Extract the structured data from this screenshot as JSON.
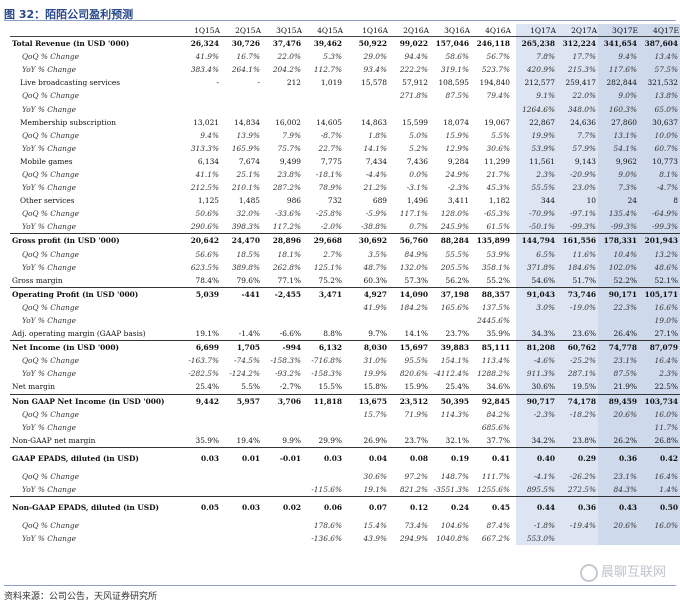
{
  "title": "图 32：陌陌公司盈利预测",
  "source": "资料来源：公司公告，天风证券研究所",
  "watermark": "晨聊互联网",
  "colors": {
    "shade": "#dde5f2",
    "shade_estimate": "#cfd9ec",
    "title": "#2b4a8a"
  },
  "columns": [
    "",
    "1Q15A",
    "2Q15A",
    "3Q15A",
    "4Q15A",
    "1Q16A",
    "2Q16A",
    "3Q16A",
    "4Q16A",
    "1Q17A",
    "2Q17A",
    "3Q17E",
    "4Q17E"
  ],
  "rows": [
    {
      "label": "Total Revenue (in USD '000)",
      "type": "main",
      "v": [
        "26,324",
        "30,726",
        "37,476",
        "39,462",
        "50,922",
        "99,022",
        "157,046",
        "246,118",
        "265,238",
        "312,224",
        "341,654",
        "387,604"
      ]
    },
    {
      "label": "QoQ % Change",
      "type": "sub",
      "v": [
        "41.9%",
        "16.7%",
        "22.0%",
        "5.3%",
        "29.0%",
        "94.4%",
        "58.6%",
        "56.7%",
        "7.8%",
        "17.7%",
        "9.4%",
        "13.4%"
      ]
    },
    {
      "label": "YoY % Change",
      "type": "sub",
      "v": [
        "383.4%",
        "264.1%",
        "204.2%",
        "112.7%",
        "93.4%",
        "222.2%",
        "319.1%",
        "523.7%",
        "420.9%",
        "215.3%",
        "117.6%",
        "57.5%"
      ]
    },
    {
      "label": "Live broadcasting services",
      "type": "sec",
      "v": [
        "-",
        "-",
        "212",
        "1,019",
        "15,578",
        "57,912",
        "108,595",
        "194,840",
        "212,577",
        "259,417",
        "282,844",
        "321,532"
      ]
    },
    {
      "label": "QoQ % Change",
      "type": "sub",
      "v": [
        "",
        "",
        "",
        "",
        "",
        "271.8%",
        "87.5%",
        "79.4%",
        "9.1%",
        "22.0%",
        "9.0%",
        "13.8%"
      ]
    },
    {
      "label": "YoY % Change",
      "type": "sub",
      "v": [
        "",
        "",
        "",
        "",
        "",
        "",
        "",
        "",
        "1264.6%",
        "348.0%",
        "160.3%",
        "65.0%"
      ]
    },
    {
      "label": "Membership subscription",
      "type": "sec",
      "v": [
        "13,021",
        "14,834",
        "16,002",
        "14,605",
        "14,863",
        "15,599",
        "18,074",
        "19,067",
        "22,867",
        "24,636",
        "27,860",
        "30,637"
      ]
    },
    {
      "label": "QoQ % Change",
      "type": "sub",
      "v": [
        "9.4%",
        "13.9%",
        "7.9%",
        "-8.7%",
        "1.8%",
        "5.0%",
        "15.9%",
        "5.5%",
        "19.9%",
        "7.7%",
        "13.1%",
        "10.0%"
      ]
    },
    {
      "label": "YoY % Change",
      "type": "sub",
      "v": [
        "313.3%",
        "165.9%",
        "75.7%",
        "22.7%",
        "14.1%",
        "5.2%",
        "12.9%",
        "30.6%",
        "53.9%",
        "57.9%",
        "54.1%",
        "60.7%"
      ]
    },
    {
      "label": "Mobile games",
      "type": "sec",
      "v": [
        "6,134",
        "7,674",
        "9,499",
        "7,775",
        "7,434",
        "7,436",
        "9,284",
        "11,299",
        "11,561",
        "9,143",
        "9,962",
        "10,773"
      ]
    },
    {
      "label": "QoQ % Change",
      "type": "sub",
      "v": [
        "41.1%",
        "25.1%",
        "23.8%",
        "-18.1%",
        "-4.4%",
        "0.0%",
        "24.9%",
        "21.7%",
        "2.3%",
        "-20.9%",
        "9.0%",
        "8.1%"
      ]
    },
    {
      "label": "YoY % Change",
      "type": "sub",
      "v": [
        "212.5%",
        "210.1%",
        "287.2%",
        "78.9%",
        "21.2%",
        "-3.1%",
        "-2.3%",
        "45.3%",
        "55.5%",
        "23.0%",
        "7.3%",
        "-4.7%"
      ]
    },
    {
      "label": "Other services",
      "type": "sec",
      "v": [
        "1,125",
        "1,485",
        "986",
        "732",
        "689",
        "1,496",
        "3,411",
        "1,182",
        "344",
        "10",
        "24",
        "8"
      ]
    },
    {
      "label": "QoQ % Change",
      "type": "sub",
      "v": [
        "50.6%",
        "32.0%",
        "-33.6%",
        "-25.8%",
        "-5.9%",
        "117.1%",
        "128.0%",
        "-65.3%",
        "-70.9%",
        "-97.1%",
        "135.4%",
        "-64.9%"
      ]
    },
    {
      "label": "YoY % Change",
      "type": "sub",
      "v": [
        "290.6%",
        "398.3%",
        "117.2%",
        "-2.0%",
        "-38.8%",
        "0.7%",
        "245.9%",
        "61.5%",
        "-50.1%",
        "-99.3%",
        "-99.3%",
        "-99.3%"
      ]
    },
    {
      "label": "Gross profit (in USD '000)",
      "type": "main",
      "v": [
        "20,642",
        "24,470",
        "28,896",
        "29,668",
        "30,692",
        "56,760",
        "88,284",
        "135,899",
        "144,794",
        "161,556",
        "178,331",
        "201,943"
      ]
    },
    {
      "label": "QoQ % Change",
      "type": "sub",
      "v": [
        "56.6%",
        "18.5%",
        "18.1%",
        "2.7%",
        "3.5%",
        "84.9%",
        "55.5%",
        "53.9%",
        "6.5%",
        "11.6%",
        "10.4%",
        "13.2%"
      ]
    },
    {
      "label": "YoY % Change",
      "type": "sub",
      "v": [
        "623.5%",
        "389.8%",
        "262.8%",
        "125.1%",
        "48.7%",
        "132.0%",
        "205.5%",
        "358.1%",
        "371.8%",
        "184.6%",
        "102.0%",
        "48.6%"
      ]
    },
    {
      "label": "Gross margin",
      "type": "plain",
      "v": [
        "78.4%",
        "79.6%",
        "77.1%",
        "75.2%",
        "60.3%",
        "57.3%",
        "56.2%",
        "55.2%",
        "54.6%",
        "51.7%",
        "52.2%",
        "52.1%"
      ]
    },
    {
      "label": "Operating Profit (in USD '000)",
      "type": "main",
      "v": [
        "5,039",
        "-441",
        "-2,455",
        "3,471",
        "4,927",
        "14,090",
        "37,198",
        "88,357",
        "91,043",
        "73,746",
        "90,171",
        "105,171"
      ]
    },
    {
      "label": "QoQ % Change",
      "type": "sub",
      "v": [
        "",
        "",
        "",
        "",
        "41.9%",
        "184.2%",
        "165.6%",
        "137.5%",
        "3.0%",
        "-19.0%",
        "22.3%",
        "16.6%"
      ]
    },
    {
      "label": "YoY % Change",
      "type": "sub",
      "v": [
        "",
        "",
        "",
        "",
        "",
        "",
        "",
        "2445.6%",
        "",
        "",
        "",
        "19.0%"
      ]
    },
    {
      "label": "Adj. operating margin (GAAP basis)",
      "type": "plain",
      "v": [
        "19.1%",
        "-1.4%",
        "-6.6%",
        "8.8%",
        "9.7%",
        "14.1%",
        "23.7%",
        "35.9%",
        "34.3%",
        "23.6%",
        "26.4%",
        "27.1%"
      ]
    },
    {
      "label": "Net Income (in USD '000)",
      "type": "main",
      "v": [
        "6,699",
        "1,705",
        "-994",
        "6,132",
        "8,030",
        "15,697",
        "39,883",
        "85,111",
        "81,208",
        "60,762",
        "74,778",
        "87,079"
      ]
    },
    {
      "label": "QoQ % Change",
      "type": "sub",
      "v": [
        "-163.7%",
        "-74.5%",
        "-158.3%",
        "-716.8%",
        "31.0%",
        "95.5%",
        "154.1%",
        "113.4%",
        "-4.6%",
        "-25.2%",
        "23.1%",
        "16.4%"
      ]
    },
    {
      "label": "YoY % Change",
      "type": "sub",
      "v": [
        "-282.5%",
        "-124.2%",
        "-93.2%",
        "-158.3%",
        "19.9%",
        "820.6%",
        "-4112.4%",
        "1288.2%",
        "911.3%",
        "287.1%",
        "87.5%",
        "2.3%"
      ]
    },
    {
      "label": "Net margin",
      "type": "plain",
      "v": [
        "25.4%",
        "5.5%",
        "-2.7%",
        "15.5%",
        "15.8%",
        "15.9%",
        "25.4%",
        "34.6%",
        "30.6%",
        "19.5%",
        "21.9%",
        "22.5%"
      ]
    },
    {
      "label": "Non GAAP Net Income (in USD '000)",
      "type": "main",
      "v": [
        "9,442",
        "5,957",
        "3,706",
        "11,818",
        "13,675",
        "23,512",
        "50,395",
        "92,845",
        "90,717",
        "74,178",
        "89,459",
        "103,734"
      ]
    },
    {
      "label": "QoQ % Change",
      "type": "sub",
      "v": [
        "",
        "",
        "",
        "",
        "15.7%",
        "71.9%",
        "114.3%",
        "84.2%",
        "-2.3%",
        "-18.2%",
        "20.6%",
        "16.0%"
      ]
    },
    {
      "label": "YoY % Change",
      "type": "sub",
      "v": [
        "",
        "",
        "",
        "",
        "",
        "",
        "",
        "685.6%",
        "",
        "",
        "",
        "11.7%"
      ]
    },
    {
      "label": "Non-GAAP net margin",
      "type": "plain",
      "v": [
        "35.9%",
        "19.4%",
        "9.9%",
        "29.9%",
        "26.9%",
        "23.7%",
        "32.1%",
        "37.7%",
        "34.2%",
        "23.8%",
        "26.2%",
        "26.8%"
      ]
    },
    {
      "label": "GAAP EPADS, diluted (in USD)",
      "type": "main tall",
      "v": [
        "0.03",
        "0.01",
        "-0.01",
        "0.03",
        "0.04",
        "0.08",
        "0.19",
        "0.41",
        "0.40",
        "0.29",
        "0.36",
        "0.42"
      ]
    },
    {
      "label": "QoQ % Change",
      "type": "sub",
      "v": [
        "",
        "",
        "",
        "",
        "30.6%",
        "97.2%",
        "148.7%",
        "111.7%",
        "-4.1%",
        "-26.2%",
        "23.1%",
        "16.4%"
      ]
    },
    {
      "label": "YoY % Change",
      "type": "sub",
      "v": [
        "",
        "",
        "",
        "-115.6%",
        "19.1%",
        "821.2%",
        "-3551.3%",
        "1255.6%",
        "895.5%",
        "272.5%",
        "84.3%",
        "1.4%"
      ]
    },
    {
      "label": "Non-GAAP EPADS, diluted (in USD)",
      "type": "main tall",
      "v": [
        "0.05",
        "0.03",
        "0.02",
        "0.06",
        "0.07",
        "0.12",
        "0.24",
        "0.45",
        "0.44",
        "0.36",
        "0.43",
        "0.50"
      ]
    },
    {
      "label": "QoQ % Change",
      "type": "sub",
      "v": [
        "",
        "",
        "",
        "178.6%",
        "15.4%",
        "73.4%",
        "104.6%",
        "87.4%",
        "-1.8%",
        "-19.4%",
        "20.6%",
        "16.0%"
      ]
    },
    {
      "label": "YoY % Change",
      "type": "sub",
      "v": [
        "",
        "",
        "",
        "-136.6%",
        "43.9%",
        "294.9%",
        "1040.8%",
        "667.2%",
        "553.0%",
        "",
        "",
        ""
      ]
    }
  ]
}
